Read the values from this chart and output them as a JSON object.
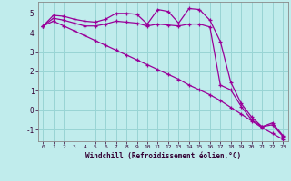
{
  "xlabel": "Windchill (Refroidissement éolien,°C)",
  "background_color": "#c0ecec",
  "grid_color": "#98d4d4",
  "line_color": "#990099",
  "xlim": [
    -0.5,
    23.5
  ],
  "ylim": [
    -1.6,
    5.6
  ],
  "yticks": [
    -1,
    0,
    1,
    2,
    3,
    4,
    5
  ],
  "xticks": [
    0,
    1,
    2,
    3,
    4,
    5,
    6,
    7,
    8,
    9,
    10,
    11,
    12,
    13,
    14,
    15,
    16,
    17,
    18,
    19,
    20,
    21,
    22,
    23
  ],
  "line1_x": [
    0,
    1,
    2,
    3,
    4,
    5,
    6,
    7,
    8,
    9,
    10,
    11,
    12,
    13,
    14,
    15,
    16,
    17,
    18,
    19,
    20,
    21,
    22,
    23
  ],
  "line1_y": [
    4.35,
    4.9,
    4.85,
    4.7,
    4.6,
    4.55,
    4.7,
    5.0,
    5.0,
    4.95,
    4.45,
    5.2,
    5.1,
    4.5,
    5.25,
    5.2,
    4.65,
    3.55,
    1.45,
    0.35,
    -0.35,
    -0.85,
    -0.65,
    -1.3
  ],
  "line2_x": [
    0,
    1,
    2,
    3,
    4,
    5,
    6,
    7,
    8,
    9,
    10,
    11,
    12,
    13,
    14,
    15,
    16,
    17,
    18,
    19,
    20,
    21,
    22,
    23
  ],
  "line2_y": [
    4.35,
    4.75,
    4.65,
    4.5,
    4.35,
    4.35,
    4.45,
    4.6,
    4.55,
    4.5,
    4.35,
    4.45,
    4.4,
    4.35,
    4.45,
    4.45,
    4.3,
    1.3,
    1.05,
    0.2,
    -0.5,
    -0.85,
    -0.75,
    -1.35
  ],
  "line3_x": [
    0,
    1,
    2,
    3,
    4,
    5,
    6,
    7,
    8,
    9,
    10,
    11,
    12,
    13,
    14,
    15,
    16,
    17,
    18,
    19,
    20,
    21,
    22,
    23
  ],
  "line3_y": [
    4.35,
    4.6,
    4.35,
    4.1,
    3.85,
    3.6,
    3.35,
    3.1,
    2.85,
    2.6,
    2.35,
    2.1,
    1.85,
    1.6,
    1.3,
    1.05,
    0.8,
    0.5,
    0.15,
    -0.2,
    -0.55,
    -0.9,
    -1.2,
    -1.5
  ]
}
